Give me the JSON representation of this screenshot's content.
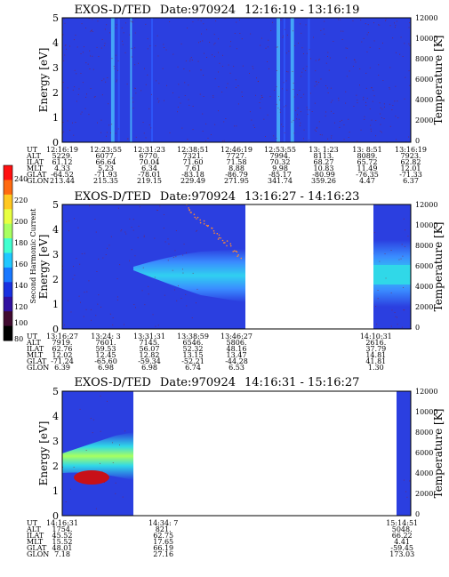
{
  "colors": {
    "background": "#2b3fe0",
    "stripe_cyan": "#4ec8ff",
    "stripe_blue": "#2f5cff",
    "band_light": "#3aa6ff",
    "band_cyan": "#30d8e8",
    "band_green": "#a8ff60",
    "band_yellow": "#e8ff40",
    "hot_red": "#c81018",
    "speckle": "#8a2030",
    "nodata": "#ffffff"
  },
  "colorbar": {
    "label": "Second Harmonic Current",
    "ticks": [
      "240",
      "220",
      "200",
      "180",
      "160",
      "140",
      "120",
      "100",
      "80"
    ],
    "colors": [
      "#ff1010",
      "#ff6a10",
      "#ffc820",
      "#e8ff40",
      "#a8ff60",
      "#40ffd0",
      "#20c8ff",
      "#1878ff",
      "#1830e0",
      "#3010a0",
      "#400a30",
      "#000000"
    ]
  },
  "chart_data": [
    {
      "type": "heatmap",
      "title": "EXOS-D/TED",
      "date": "Date:970924",
      "time_range": "12:16:19 - 13:16:19",
      "ylabel": "Energy [eV]",
      "y2label": "Temperature [K]",
      "ylim": [
        0,
        5
      ],
      "y2lim": [
        0,
        12000
      ],
      "yticks": [
        "5",
        "4",
        "3",
        "2",
        "1",
        "0"
      ],
      "y2ticks": [
        "12000",
        "10000",
        "8000",
        "6000",
        "4000",
        "2000",
        "0"
      ],
      "nodata_intervals": [],
      "bright_stripes": [
        [
          0.14,
          0.15
        ],
        [
          0.16,
          0.165
        ],
        [
          0.195,
          0.2
        ],
        [
          0.255,
          0.26
        ],
        [
          0.615,
          0.625
        ],
        [
          0.635,
          0.64
        ],
        [
          0.655,
          0.665
        ],
        [
          0.705,
          0.71
        ]
      ],
      "ephemeris_labels": [
        "UT",
        "ALT",
        "ILAT",
        "MLT",
        "GLAT",
        "GLON"
      ],
      "ephemeris": [
        [
          "12:16:19",
          "5229.",
          "61.12",
          "4.33",
          "-64.52",
          "213.44"
        ],
        [
          "12:23:55",
          "6077.",
          "66.64",
          "5.23",
          "-71.93",
          "215.35"
        ],
        [
          "12:31:23",
          "6770.",
          "70.04",
          "6.34",
          "-78.01",
          "219.15"
        ],
        [
          "12:38:51",
          "7321.",
          "71.60",
          "7.61",
          "-83.18",
          "229.49"
        ],
        [
          "12:46:19",
          "7727.",
          "71.58",
          "8.88",
          "-86.79",
          "271.95"
        ],
        [
          "12:53:55",
          "7994.",
          "70.32",
          "9.98",
          "-85.17",
          "341.74"
        ],
        [
          "13: 1:23",
          "8113.",
          "68.27",
          "10.83",
          "-80.99",
          "359.26"
        ],
        [
          "13: 8:51",
          "8089.",
          "65.72",
          "11.49",
          "-76.35",
          "4.47"
        ],
        [
          "13:16:19",
          "7923.",
          "62.82",
          "12.01",
          "-71.33",
          "6.37"
        ]
      ]
    },
    {
      "type": "heatmap",
      "title": "EXOS-D/TED",
      "date": "Date:970924",
      "time_range": "13:16:27 - 14:16:23",
      "ylabel": "Energy [eV]",
      "y2label": "Temperature [K]",
      "ylim": [
        0,
        5
      ],
      "y2lim": [
        0,
        12000
      ],
      "yticks": [
        "5",
        "4",
        "3",
        "2",
        "1",
        "0"
      ],
      "y2ticks": [
        "12000",
        "10000",
        "8000",
        "6000",
        "4000",
        "2000",
        "0"
      ],
      "nodata_intervals": [
        [
          0.39,
          0.75
        ]
      ],
      "ephemeris_labels": [
        "UT",
        "ALT",
        "ILAT",
        "MLT",
        "GLAT",
        "GLON"
      ],
      "ephemeris": [
        [
          "13:16:27",
          "7919.",
          "62.76",
          "12.02",
          "-71.24",
          "6.39"
        ],
        [
          "13:24: 3",
          "7601.",
          "59.53",
          "12.45",
          "-65.60",
          "6.98"
        ],
        [
          "13:31:31",
          "7145.",
          "56.07",
          "12.82",
          "-59.34",
          "6.98"
        ],
        [
          "13:38:59",
          "6546.",
          "52.32",
          "13.15",
          "-52.21",
          "6.74"
        ],
        [
          "13:46:27",
          "5806.",
          "48.16",
          "13.47",
          "-44.28",
          "6.53"
        ],
        [
          "14:10:31",
          "2616.",
          "37.79",
          "14.81",
          "41.81",
          "1.30"
        ]
      ]
    },
    {
      "type": "heatmap",
      "title": "EXOS-D/TED",
      "date": "Date:970924",
      "time_range": "14:16:31 - 15:16:27",
      "ylabel": "Energy [eV]",
      "y2label": "Temperature [K]",
      "ylim": [
        0,
        5
      ],
      "y2lim": [
        0,
        12000
      ],
      "yticks": [
        "5",
        "4",
        "3",
        "2",
        "1",
        "0"
      ],
      "y2ticks": [
        "12000",
        "10000",
        "8000",
        "6000",
        "4000",
        "2000",
        "0"
      ],
      "nodata_intervals": [
        [
          0.27,
          0.97
        ]
      ],
      "ephemeris_labels": [
        "UT",
        "ALT",
        "ILAT",
        "MLT",
        "GLAT",
        "GLON"
      ],
      "ephemeris": [
        [
          "14:16:31",
          "1754.",
          "45.52",
          "15.52",
          "48.01",
          "7.18"
        ],
        [
          "14:34: 7",
          "821.",
          "62.75",
          "17.65",
          "66.19",
          "27.16"
        ],
        [
          "15:14:51",
          "5048.",
          "66.22",
          "4.41",
          "-59.45",
          "173.03"
        ]
      ]
    }
  ]
}
